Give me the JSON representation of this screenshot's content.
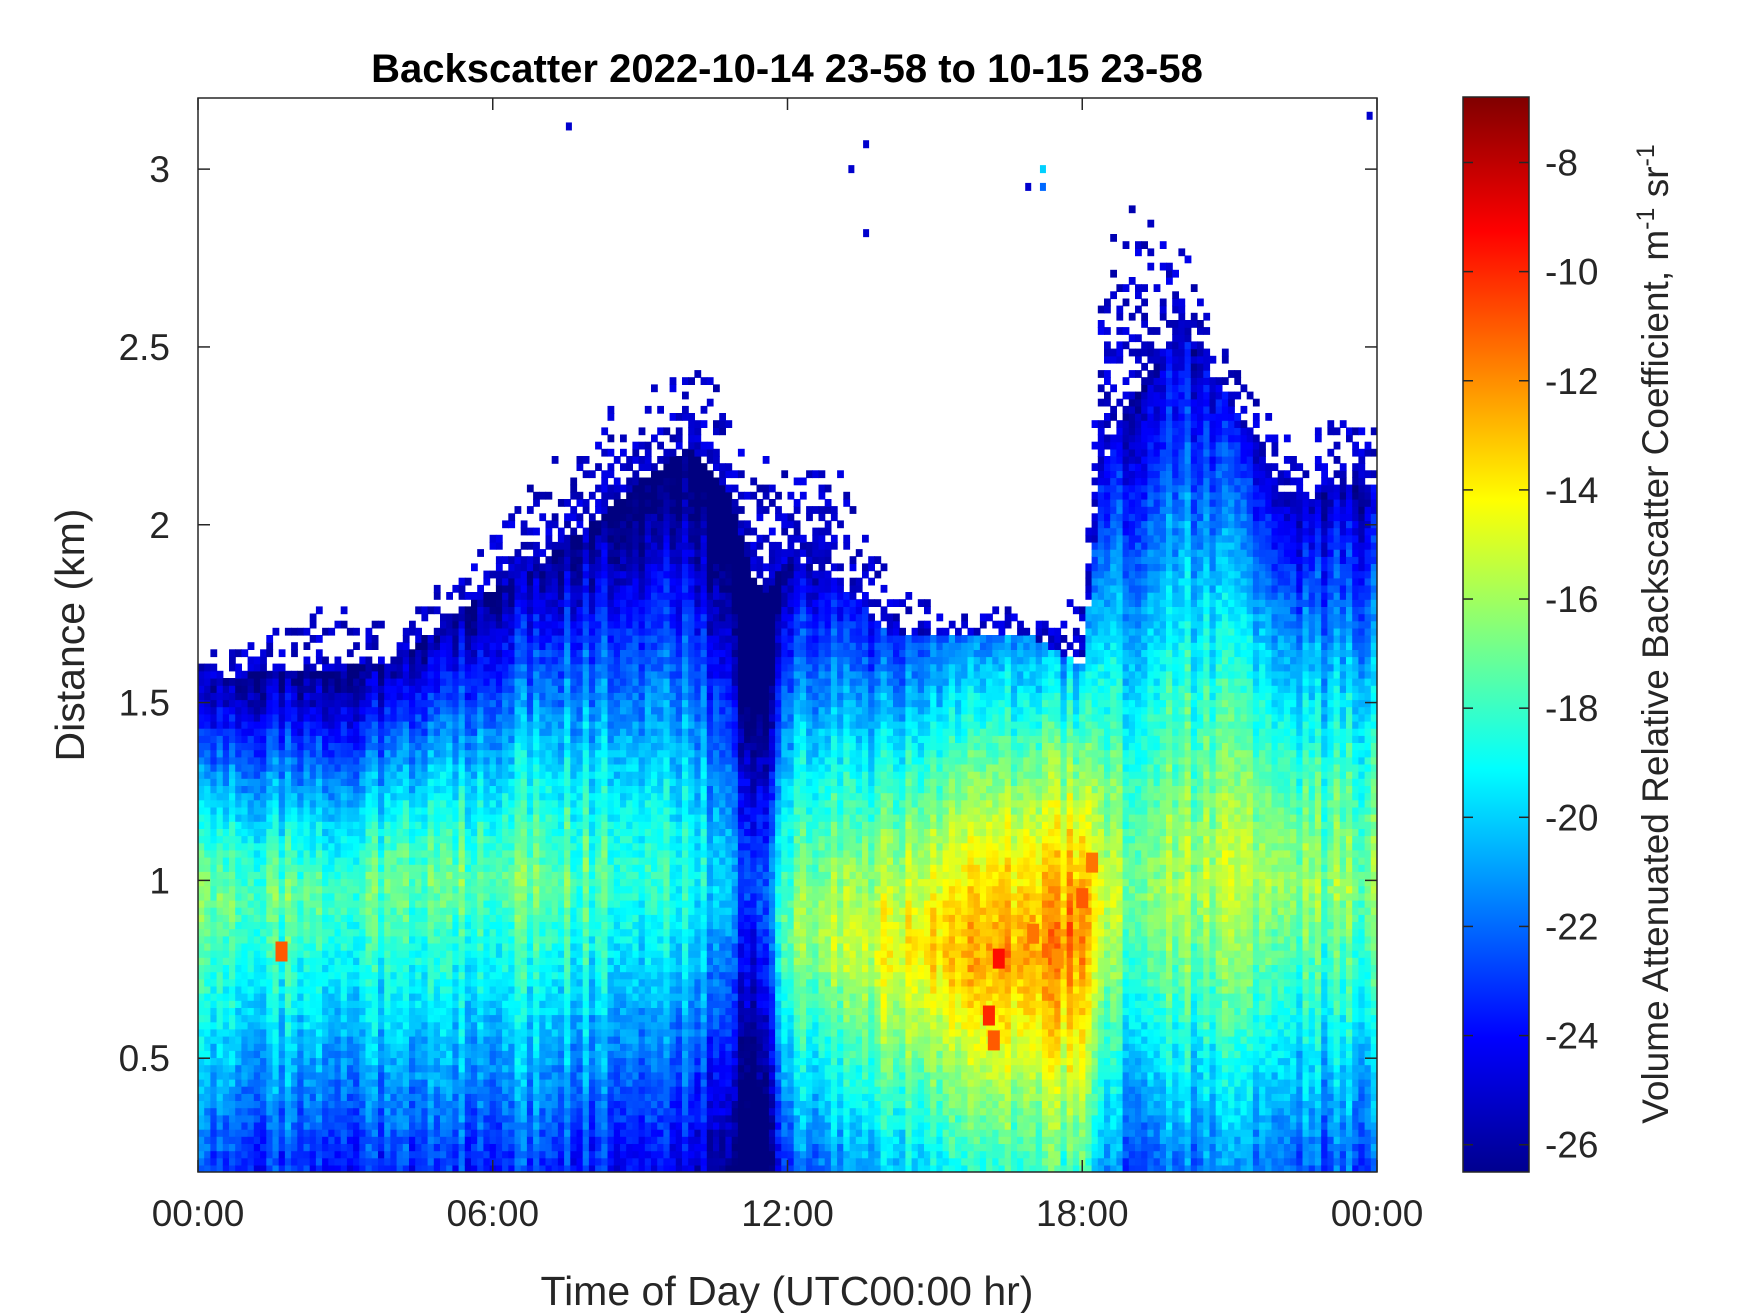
{
  "chart_data": {
    "type": "heatmap",
    "title": "Backscatter 2022-10-14 23-58 to 10-15 23-58",
    "xlabel": "Time of Day (UTC00:00 hr)",
    "ylabel": "Distance (km)",
    "colorbar_label": "Volume Attenuated Relative Backscatter Coefficient, m",
    "colorbar_label_sup1": "-1",
    "colorbar_label_mid": " sr",
    "colorbar_label_sup2": "-1",
    "xlim": [
      0,
      24
    ],
    "ylim": [
      0.18,
      3.2
    ],
    "clim": [
      -26.5,
      -6.8
    ],
    "colormap": "jet",
    "x_ticks": [
      {
        "value": 0,
        "label": "00:00"
      },
      {
        "value": 6,
        "label": "06:00"
      },
      {
        "value": 12,
        "label": "12:00"
      },
      {
        "value": 18,
        "label": "18:00"
      },
      {
        "value": 24,
        "label": "00:00"
      }
    ],
    "y_ticks": [
      {
        "value": 0.5,
        "label": "0.5"
      },
      {
        "value": 1.0,
        "label": "1"
      },
      {
        "value": 1.5,
        "label": "1.5"
      },
      {
        "value": 2.0,
        "label": "2"
      },
      {
        "value": 2.5,
        "label": "2.5"
      },
      {
        "value": 3.0,
        "label": "3"
      }
    ],
    "colorbar_ticks": [
      {
        "value": -8,
        "label": "-8"
      },
      {
        "value": -10,
        "label": "-10"
      },
      {
        "value": -12,
        "label": "-12"
      },
      {
        "value": -14,
        "label": "-14"
      },
      {
        "value": -16,
        "label": "-16"
      },
      {
        "value": -18,
        "label": "-18"
      },
      {
        "value": -20,
        "label": "-20"
      },
      {
        "value": -22,
        "label": "-22"
      },
      {
        "value": -24,
        "label": "-24"
      },
      {
        "value": -26,
        "label": "-26"
      }
    ],
    "profile": {
      "hours": [
        0,
        1,
        2,
        3,
        4,
        5,
        6,
        7,
        8,
        9,
        10,
        10.8,
        11.3,
        11.6,
        12,
        13,
        14,
        15,
        16,
        17,
        18,
        18.4,
        19,
        20,
        21,
        22,
        22.5,
        23,
        24
      ],
      "layer_top_km": [
        1.55,
        1.58,
        1.58,
        1.6,
        1.62,
        1.72,
        1.82,
        1.9,
        2.0,
        2.12,
        2.22,
        2.1,
        1.85,
        1.8,
        1.92,
        1.85,
        1.7,
        1.7,
        1.68,
        1.68,
        1.6,
        2.15,
        2.35,
        2.55,
        2.35,
        2.1,
        2.05,
        2.1,
        2.12
      ],
      "max_echo_km": [
        1.65,
        1.7,
        1.75,
        1.8,
        1.7,
        1.85,
        2.0,
        2.15,
        2.3,
        2.4,
        2.45,
        2.4,
        2.2,
        2.2,
        2.25,
        2.2,
        1.9,
        1.8,
        1.78,
        1.75,
        1.8,
        2.8,
        2.9,
        2.8,
        2.5,
        2.3,
        2.25,
        2.3,
        2.3
      ],
      "core_value": [
        -16.5,
        -17,
        -17,
        -17.5,
        -17.5,
        -17.5,
        -17,
        -17,
        -17.5,
        -18,
        -18.5,
        -20.5,
        -23.5,
        -22,
        -16.5,
        -15.5,
        -14.5,
        -13.5,
        -12,
        -12.5,
        -11.5,
        -15,
        -16.5,
        -16,
        -15.5,
        -16,
        -16.5,
        -16.5,
        -16.5
      ],
      "core_height_km": [
        0.95,
        0.95,
        0.95,
        0.95,
        1.0,
        1.0,
        1.0,
        1.0,
        1.0,
        1.0,
        1.0,
        1.0,
        1.0,
        0.95,
        0.85,
        0.85,
        0.8,
        0.8,
        0.8,
        0.8,
        0.85,
        0.9,
        0.95,
        0.95,
        1.0,
        1.0,
        1.0,
        1.0,
        1.0
      ]
    },
    "peak_cells": [
      {
        "x": 16.1,
        "y": 0.62,
        "value": -10
      },
      {
        "x": 16.3,
        "y": 0.78,
        "value": -9.5
      },
      {
        "x": 16.2,
        "y": 0.55,
        "value": -11
      },
      {
        "x": 17.0,
        "y": 0.85,
        "value": -11.5
      },
      {
        "x": 18.0,
        "y": 0.95,
        "value": -11
      },
      {
        "x": 18.2,
        "y": 1.05,
        "value": -11.5
      },
      {
        "x": 17.5,
        "y": 0.78,
        "value": -12
      },
      {
        "x": 1.7,
        "y": 0.8,
        "value": -11
      }
    ],
    "sparse_echoes": [
      {
        "x": 7.55,
        "y": 3.12,
        "value": -25
      },
      {
        "x": 13.6,
        "y": 3.07,
        "value": -25
      },
      {
        "x": 13.3,
        "y": 3.0,
        "value": -25
      },
      {
        "x": 13.6,
        "y": 2.82,
        "value": -25
      },
      {
        "x": 17.2,
        "y": 3.0,
        "value": -20
      },
      {
        "x": 17.2,
        "y": 2.95,
        "value": -22
      },
      {
        "x": 16.9,
        "y": 2.95,
        "value": -25
      },
      {
        "x": 23.85,
        "y": 3.15,
        "value": -25
      }
    ]
  }
}
